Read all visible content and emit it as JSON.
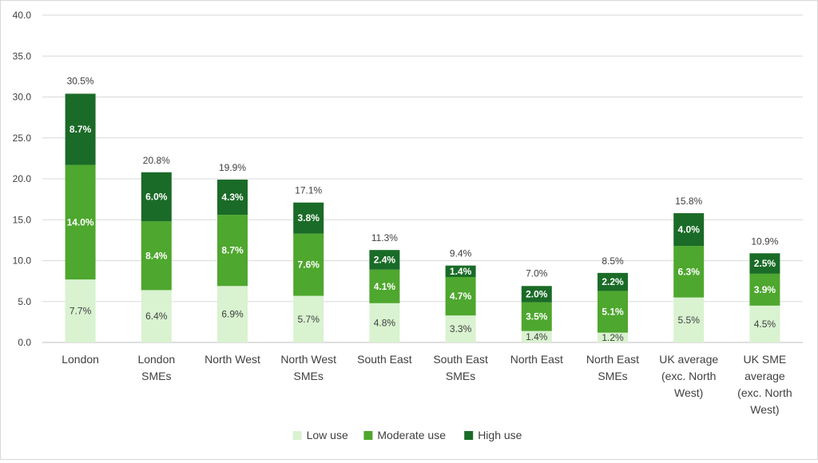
{
  "chart_data": {
    "type": "bar",
    "stacked": true,
    "title": "",
    "xlabel": "",
    "ylabel": "",
    "ylim": [
      0,
      40
    ],
    "yticks": [
      "0.0",
      "5.0",
      "10.0",
      "15.0",
      "20.0",
      "25.0",
      "30.0",
      "35.0",
      "40.0"
    ],
    "grid": true,
    "legend_position": "bottom",
    "categories": [
      [
        "London"
      ],
      [
        "London",
        "SMEs"
      ],
      [
        "North West"
      ],
      [
        "North West",
        "SMEs"
      ],
      [
        "South East"
      ],
      [
        "South East",
        "SMEs"
      ],
      [
        "North East"
      ],
      [
        "North East",
        "SMEs"
      ],
      [
        "UK average",
        "(exc. North",
        "West)"
      ],
      [
        "UK SME",
        "average",
        "(exc. North",
        "West)"
      ]
    ],
    "series": [
      {
        "name": "Low use",
        "color": "#d9f2d0",
        "label_color": "#404040",
        "values": [
          7.7,
          6.4,
          6.9,
          5.7,
          4.8,
          3.3,
          1.4,
          1.2,
          5.5,
          4.5
        ],
        "labels": [
          "7.7%",
          "6.4%",
          "6.9%",
          "5.7%",
          "4.8%",
          "3.3%",
          "1.4%",
          "1.2%",
          "5.5%",
          "4.5%"
        ]
      },
      {
        "name": "Moderate use",
        "color": "#4ea72e",
        "label_color": "#ffffff",
        "values": [
          14.0,
          8.4,
          8.7,
          7.6,
          4.1,
          4.7,
          3.5,
          5.1,
          6.3,
          3.9
        ],
        "labels": [
          "14.0%",
          "8.4%",
          "8.7%",
          "7.6%",
          "4.1%",
          "4.7%",
          "3.5%",
          "5.1%",
          "6.3%",
          "3.9%"
        ]
      },
      {
        "name": "High use",
        "color": "#1a6b27",
        "label_color": "#ffffff",
        "values": [
          8.7,
          6.0,
          4.3,
          3.8,
          2.4,
          1.4,
          2.0,
          2.2,
          4.0,
          2.5
        ],
        "labels": [
          "8.7%",
          "6.0%",
          "4.3%",
          "3.8%",
          "2.4%",
          "1.4%",
          "2.0%",
          "2.2%",
          "4.0%",
          "2.5%"
        ]
      }
    ],
    "totals": [
      30.5,
      20.8,
      19.9,
      17.1,
      11.3,
      9.4,
      7.0,
      8.5,
      15.8,
      10.9
    ],
    "total_labels": [
      "30.5%",
      "20.8%",
      "19.9%",
      "17.1%",
      "11.3%",
      "9.4%",
      "7.0%",
      "8.5%",
      "15.8%",
      "10.9%"
    ],
    "colors": {
      "grid": "#d9d9d9",
      "axis": "#bfbfbf",
      "text": "#404040"
    }
  }
}
